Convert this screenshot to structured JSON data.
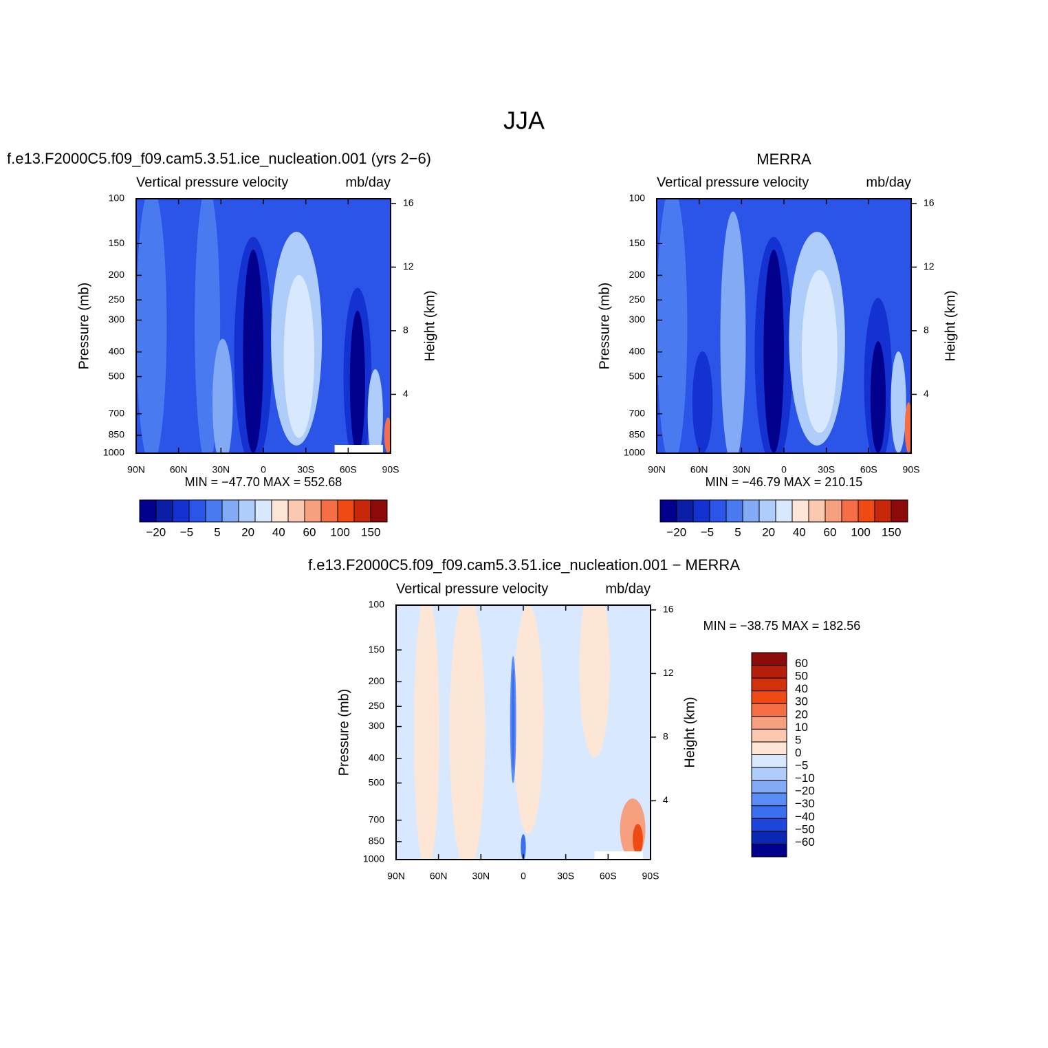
{
  "title": "JJA",
  "chart_data": [
    {
      "type": "contour",
      "title": "f.e13.F2000C5.f09_f09.cam5.3.51.ice_nucleation.001 (yrs 2−6)",
      "subtitle_left": "Vertical pressure velocity",
      "subtitle_right": "mb/day",
      "ylabel": "Pressure (mb)",
      "y2label": "Height (km)",
      "stats": "MIN = −47.70   MAX = 552.68",
      "xlim": [
        90,
        -90
      ],
      "xticks": [
        {
          "value": 90,
          "label": "90N"
        },
        {
          "value": 60,
          "label": "60N"
        },
        {
          "value": 30,
          "label": "30N"
        },
        0,
        {
          "value": -30,
          "label": "30S"
        },
        {
          "value": -60,
          "label": "60S"
        },
        {
          "value": -90,
          "label": "90S"
        }
      ],
      "ylim": [
        1000,
        100
      ],
      "yscale": "log",
      "yticks": [
        100,
        150,
        200,
        250,
        300,
        400,
        500,
        700,
        850,
        1000
      ],
      "y2lim": [
        0.3,
        16.3
      ],
      "y2ticks": [
        4,
        8,
        12,
        16
      ],
      "colorbar": {
        "orientation": "horizontal",
        "colors": [
          "#00008c",
          "#0a1fa5",
          "#1432d2",
          "#2a55e8",
          "#4a7af0",
          "#82aaf5",
          "#afcdfa",
          "#d7e8ff",
          "#fde6d5",
          "#fbc8b0",
          "#f7a080",
          "#f56e46",
          "#f04a14",
          "#c8280a",
          "#8c0a0a"
        ],
        "labels": [
          "−20",
          "−5",
          "5",
          "20",
          "40",
          "60",
          "100",
          "150"
        ]
      }
    },
    {
      "type": "contour",
      "title": "MERRA",
      "subtitle_left": "Vertical pressure velocity",
      "subtitle_right": "mb/day",
      "ylabel": "Pressure (mb)",
      "y2label": "Height (km)",
      "stats": "MIN = −46.79   MAX = 210.15",
      "xlim": [
        90,
        -90
      ],
      "xticks": [
        {
          "value": 90,
          "label": "90N"
        },
        {
          "value": 60,
          "label": "60N"
        },
        {
          "value": 30,
          "label": "30N"
        },
        0,
        {
          "value": -30,
          "label": "30S"
        },
        {
          "value": -60,
          "label": "60S"
        },
        {
          "value": -90,
          "label": "90S"
        }
      ],
      "ylim": [
        1000,
        100
      ],
      "yscale": "log",
      "yticks": [
        100,
        150,
        200,
        250,
        300,
        400,
        500,
        700,
        850,
        1000
      ],
      "y2lim": [
        0.3,
        16.3
      ],
      "y2ticks": [
        4,
        8,
        12,
        16
      ],
      "colorbar": {
        "orientation": "horizontal",
        "colors": [
          "#00008c",
          "#0a1fa5",
          "#1432d2",
          "#2a55e8",
          "#4a7af0",
          "#82aaf5",
          "#afcdfa",
          "#d7e8ff",
          "#fde6d5",
          "#fbc8b0",
          "#f7a080",
          "#f56e46",
          "#f04a14",
          "#c8280a",
          "#8c0a0a"
        ],
        "labels": [
          "−20",
          "−5",
          "5",
          "20",
          "40",
          "60",
          "100",
          "150"
        ]
      }
    },
    {
      "type": "contour",
      "title": "f.e13.F2000C5.f09_f09.cam5.3.51.ice_nucleation.001 − MERRA",
      "subtitle_left": "Vertical pressure velocity",
      "subtitle_right": "mb/day",
      "ylabel": "Pressure (mb)",
      "y2label": "Height (km)",
      "stats": "MIN = −38.75   MAX = 182.56",
      "xlim": [
        90,
        -90
      ],
      "xticks": [
        {
          "value": 90,
          "label": "90N"
        },
        {
          "value": 60,
          "label": "60N"
        },
        {
          "value": 30,
          "label": "30N"
        },
        0,
        {
          "value": -30,
          "label": "30S"
        },
        {
          "value": -60,
          "label": "60S"
        },
        {
          "value": -90,
          "label": "90S"
        }
      ],
      "ylim": [
        1000,
        100
      ],
      "yscale": "log",
      "yticks": [
        100,
        150,
        200,
        250,
        300,
        400,
        500,
        700,
        850,
        1000
      ],
      "y2lim": [
        0.3,
        16.3
      ],
      "y2ticks": [
        4,
        8,
        12,
        16
      ],
      "colorbar": {
        "orientation": "vertical",
        "colors": [
          "#8c0a0a",
          "#b41e0a",
          "#d2320a",
          "#f04a14",
          "#f56e46",
          "#f7a080",
          "#fbc8b0",
          "#fde6d5",
          "#d7e8ff",
          "#afcdfa",
          "#82aaf5",
          "#5a8cf5",
          "#3c6ef0",
          "#1e46dc",
          "#0a28b4",
          "#00008c"
        ],
        "labels": [
          "60",
          "50",
          "40",
          "30",
          "20",
          "10",
          "5",
          "0",
          "−5",
          "−10",
          "−20",
          "−30",
          "−40",
          "−50",
          "−60"
        ]
      }
    }
  ]
}
